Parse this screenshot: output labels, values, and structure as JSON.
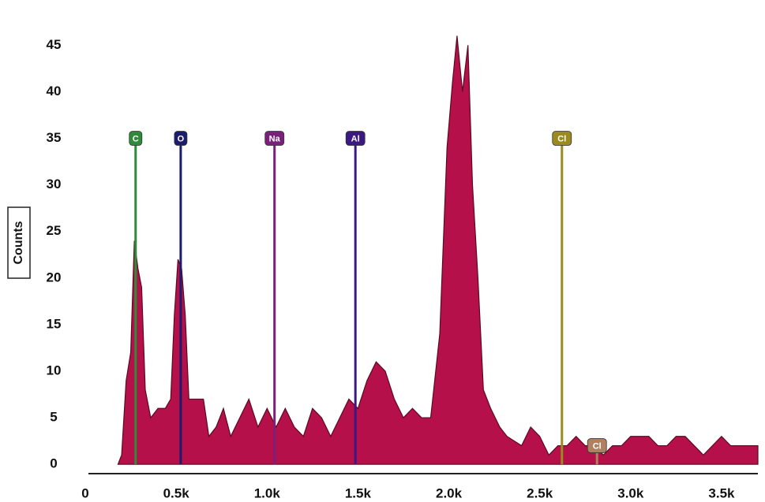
{
  "chart_data": {
    "type": "area",
    "y_label": "Counts",
    "xlim": [
      0,
      3700
    ],
    "ylim": [
      -1,
      49
    ],
    "xticks": [
      {
        "value": 0,
        "label": "0"
      },
      {
        "value": 500,
        "label": "0.5k"
      },
      {
        "value": 1000,
        "label": "1.0k"
      },
      {
        "value": 1500,
        "label": "1.5k"
      },
      {
        "value": 2000,
        "label": "2.0k"
      },
      {
        "value": 2500,
        "label": "2.5k"
      },
      {
        "value": 3000,
        "label": "3.0k"
      },
      {
        "value": 3500,
        "label": "3.5k"
      }
    ],
    "yticks": [
      0,
      5,
      10,
      15,
      20,
      25,
      30,
      35,
      40,
      45
    ],
    "grid": false,
    "color": "#b5104a",
    "x": [
      180,
      200,
      225,
      250,
      270,
      290,
      310,
      330,
      360,
      400,
      440,
      470,
      490,
      510,
      530,
      550,
      570,
      600,
      650,
      680,
      720,
      760,
      800,
      850,
      900,
      950,
      1000,
      1050,
      1100,
      1150,
      1200,
      1250,
      1300,
      1350,
      1400,
      1450,
      1500,
      1550,
      1600,
      1650,
      1700,
      1750,
      1800,
      1850,
      1900,
      1950,
      1990,
      2020,
      2045,
      2075,
      2105,
      2130,
      2160,
      2190,
      2230,
      2280,
      2320,
      2400,
      2450,
      2500,
      2550,
      2600,
      2650,
      2700,
      2750,
      2800,
      2850,
      2900,
      2950,
      3000,
      3050,
      3100,
      3150,
      3200,
      3250,
      3300,
      3350,
      3400,
      3450,
      3500,
      3550,
      3600,
      3650,
      3700
    ],
    "values": [
      0,
      1,
      9,
      12,
      24,
      21,
      19,
      8,
      5,
      6,
      6,
      7,
      16,
      22,
      21,
      16,
      7,
      7,
      7,
      3,
      4,
      6,
      3,
      5,
      7,
      4,
      6,
      4,
      6,
      4,
      3,
      6,
      5,
      3,
      5,
      7,
      6,
      9,
      11,
      10,
      7,
      5,
      6,
      5,
      5,
      14,
      34,
      41,
      46,
      40,
      45,
      30,
      20,
      8,
      6,
      4,
      3,
      2,
      4,
      3,
      1,
      2,
      2,
      3,
      2,
      2,
      1,
      2,
      2,
      3,
      3,
      3,
      2,
      2,
      3,
      3,
      2,
      1,
      2,
      3,
      2,
      2,
      2,
      2
    ],
    "markers": [
      {
        "label": "C",
        "x": 277,
        "y": 35,
        "color": "#2f8a3a"
      },
      {
        "label": "O",
        "x": 525,
        "y": 35,
        "color": "#1c1c6e"
      },
      {
        "label": "Na",
        "x": 1041,
        "y": 35,
        "color": "#7a1f7a"
      },
      {
        "label": "Al",
        "x": 1486,
        "y": 35,
        "color": "#3a1a80"
      },
      {
        "label": "Cl",
        "x": 2622,
        "y": 35,
        "color": "#9a8a20"
      },
      {
        "label": "Cl",
        "x": 2815,
        "y": 2,
        "color": "#b08060"
      }
    ]
  }
}
